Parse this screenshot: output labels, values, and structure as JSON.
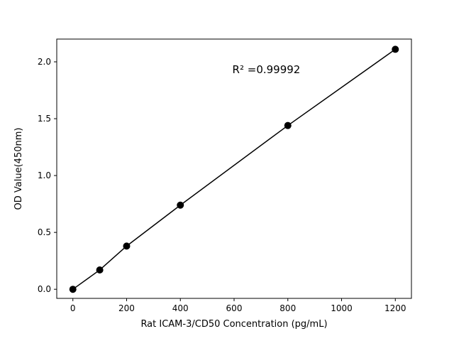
{
  "chart_data": {
    "type": "line",
    "series_name": "standard-curve",
    "x": [
      0,
      100,
      200,
      400,
      800,
      1200
    ],
    "y": [
      0.0,
      0.17,
      0.38,
      0.74,
      1.44,
      2.11
    ],
    "title": "",
    "xlabel": "Rat ICAM-3/CD50 Concentration (pg/mL)",
    "ylabel": "OD Value(450nm)",
    "xlim": [
      -60,
      1260
    ],
    "ylim": [
      -0.08,
      2.2
    ],
    "xticks": [
      0,
      200,
      400,
      600,
      800,
      1000,
      1200
    ],
    "ytick_labels": [
      "0.0",
      "0.5",
      "1.0",
      "1.5",
      "2.0"
    ],
    "yticks": [
      0.0,
      0.5,
      1.0,
      1.5,
      2.0
    ],
    "annotation": {
      "text": "R² =0.99992",
      "x": 720,
      "y": 1.9
    },
    "grid": false,
    "legend": "none",
    "line_color": "#000000",
    "marker_color": "#000000",
    "axis_color": "#000000",
    "background": "#ffffff"
  }
}
